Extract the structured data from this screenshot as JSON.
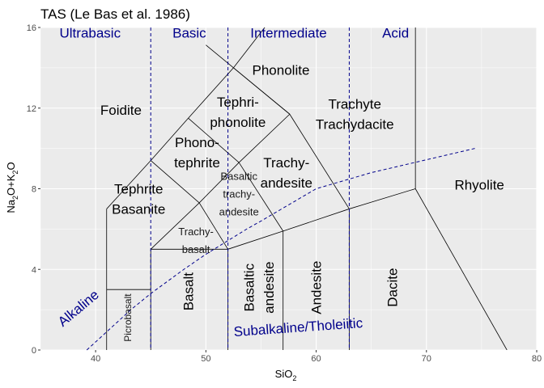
{
  "chart_data": {
    "type": "line",
    "title": "TAS (Le Bas et al. 1986)",
    "xlabel": {
      "main": "SiO",
      "sub": "2"
    },
    "ylabel": {
      "p1": "Na",
      "s1": "2",
      "p2": "O+K",
      "s2": "2",
      "p3": "O"
    },
    "xlim": [
      35,
      80
    ],
    "ylim": [
      0,
      16
    ],
    "xticks": [
      40,
      50,
      60,
      70,
      80
    ],
    "yticks": [
      0,
      4,
      8,
      12,
      16
    ],
    "grid": true,
    "colors": {
      "panel": "#ebebeb",
      "grid": "#ffffff",
      "boundary": "#000000",
      "silica_divisions": "#00008b",
      "series_divider": "#00008b",
      "axis_text": "#4d4d4d"
    },
    "boundaries": [
      [
        [
          41,
          0
        ],
        [
          41,
          7
        ]
      ],
      [
        [
          41,
          7
        ],
        [
          45,
          9.4
        ]
      ],
      [
        [
          45,
          9.4
        ],
        [
          48.4,
          11.5
        ]
      ],
      [
        [
          48.4,
          11.5
        ],
        [
          52.5,
          14
        ]
      ],
      [
        [
          52.5,
          14
        ],
        [
          57.6,
          11.7
        ]
      ],
      [
        [
          57.6,
          11.7
        ],
        [
          63,
          7
        ]
      ],
      [
        [
          57.6,
          11.7
        ],
        [
          50,
          15.13
        ]
      ],
      [
        [
          52.5,
          14
        ],
        [
          61,
          20
        ]
      ],
      [
        [
          41,
          3
        ],
        [
          45,
          3
        ]
      ],
      [
        [
          45,
          9.4
        ],
        [
          49.4,
          7.3
        ]
      ],
      [
        [
          49.4,
          7.3
        ],
        [
          53,
          9.3
        ]
      ],
      [
        [
          48.4,
          11.5
        ],
        [
          53,
          9.3
        ]
      ],
      [
        [
          53,
          9.3
        ],
        [
          57.6,
          11.7
        ]
      ],
      [
        [
          45,
          5
        ],
        [
          49.4,
          7.3
        ]
      ],
      [
        [
          49.4,
          7.3
        ],
        [
          52,
          5
        ]
      ],
      [
        [
          53,
          9.3
        ],
        [
          57,
          5.9
        ]
      ],
      [
        [
          52,
          5
        ],
        [
          57,
          5.9
        ]
      ],
      [
        [
          57,
          5.9
        ],
        [
          63,
          7
        ]
      ],
      [
        [
          63,
          7
        ],
        [
          69,
          8
        ]
      ],
      [
        [
          69,
          8
        ],
        [
          69,
          17.73
        ]
      ],
      [
        [
          69,
          8
        ],
        [
          77.3,
          0
        ]
      ],
      [
        [
          45,
          5
        ],
        [
          52,
          5
        ]
      ],
      [
        [
          45,
          0
        ],
        [
          45,
          5
        ]
      ],
      [
        [
          52,
          0
        ],
        [
          52,
          5
        ]
      ],
      [
        [
          57,
          0
        ],
        [
          57,
          5.9
        ]
      ],
      [
        [
          63,
          0
        ],
        [
          63,
          7
        ]
      ]
    ],
    "silica_divisions": [
      45,
      52,
      63
    ],
    "series_divider": [
      [
        39.2,
        0
      ],
      [
        40,
        0.4
      ],
      [
        43.2,
        2
      ],
      [
        45,
        2.8
      ],
      [
        48,
        4
      ],
      [
        50,
        4.75
      ],
      [
        53.7,
        6
      ],
      [
        55,
        6.4
      ],
      [
        60,
        8
      ],
      [
        65,
        8.8
      ],
      [
        74.4,
        10
      ]
    ],
    "group_labels": [
      {
        "text": "Ultrabasic",
        "x": 39.5,
        "y": 15.5
      },
      {
        "text": "Basic",
        "x": 48.5,
        "y": 15.5
      },
      {
        "text": "Intermediate",
        "x": 57.5,
        "y": 15.5
      },
      {
        "text": "Acid",
        "x": 67.2,
        "y": 15.5
      }
    ],
    "field_labels": [
      {
        "lines": [
          "Foidite"
        ],
        "x": 42.3,
        "y": 11.9,
        "size": "lg"
      },
      {
        "lines": [
          "Phonolite"
        ],
        "x": 56.8,
        "y": 13.9,
        "size": "lg"
      },
      {
        "lines": [
          "Tephri-",
          "phonolite"
        ],
        "x": 52.9,
        "y": 11.8,
        "size": "lg"
      },
      {
        "lines": [
          "Trachyte",
          "Trachydacite"
        ],
        "x": 63.5,
        "y": 11.7,
        "size": "lg"
      },
      {
        "lines": [
          "Phono-",
          "tephrite"
        ],
        "x": 49.2,
        "y": 9.8,
        "size": "lg"
      },
      {
        "lines": [
          "Trachy-",
          "andesite"
        ],
        "x": 57.3,
        "y": 8.8,
        "size": "lg"
      },
      {
        "lines": [
          "Rhyolite"
        ],
        "x": 74.8,
        "y": 8.2,
        "size": "lg"
      },
      {
        "lines": [
          "Tephrite",
          "Basanite"
        ],
        "x": 43.9,
        "y": 7.5,
        "size": "lg"
      },
      {
        "lines": [
          "Basaltic",
          "trachy-",
          "andesite"
        ],
        "x": 53,
        "y": 7.8,
        "size": "sm"
      },
      {
        "lines": [
          "Trachy-",
          "basalt"
        ],
        "x": 49.1,
        "y": 5.5,
        "size": "sm"
      }
    ],
    "rotated_labels": [
      {
        "text": "Picrobasalt",
        "x": 43,
        "y": 1.6,
        "size": "xs"
      },
      {
        "text": "Basalt",
        "x": 48.5,
        "y": 2.9,
        "size": "lg"
      },
      {
        "text": "Basaltic",
        "x": 54,
        "y": 3.1,
        "size": "lg"
      },
      {
        "text": "andesite",
        "x": 55.8,
        "y": 3.1,
        "size": "lg"
      },
      {
        "text": "Andesite",
        "x": 60.1,
        "y": 3.1,
        "size": "lg"
      },
      {
        "text": "Dacite",
        "x": 67,
        "y": 3.1,
        "size": "lg"
      }
    ],
    "series_labels": [
      {
        "text": "Alkaline",
        "x": 38.7,
        "y": 1.9,
        "angle": -40
      },
      {
        "text": "Subalkaline/Tholeiitic",
        "x": 58.4,
        "y": 0.9,
        "angle": -4
      }
    ]
  }
}
